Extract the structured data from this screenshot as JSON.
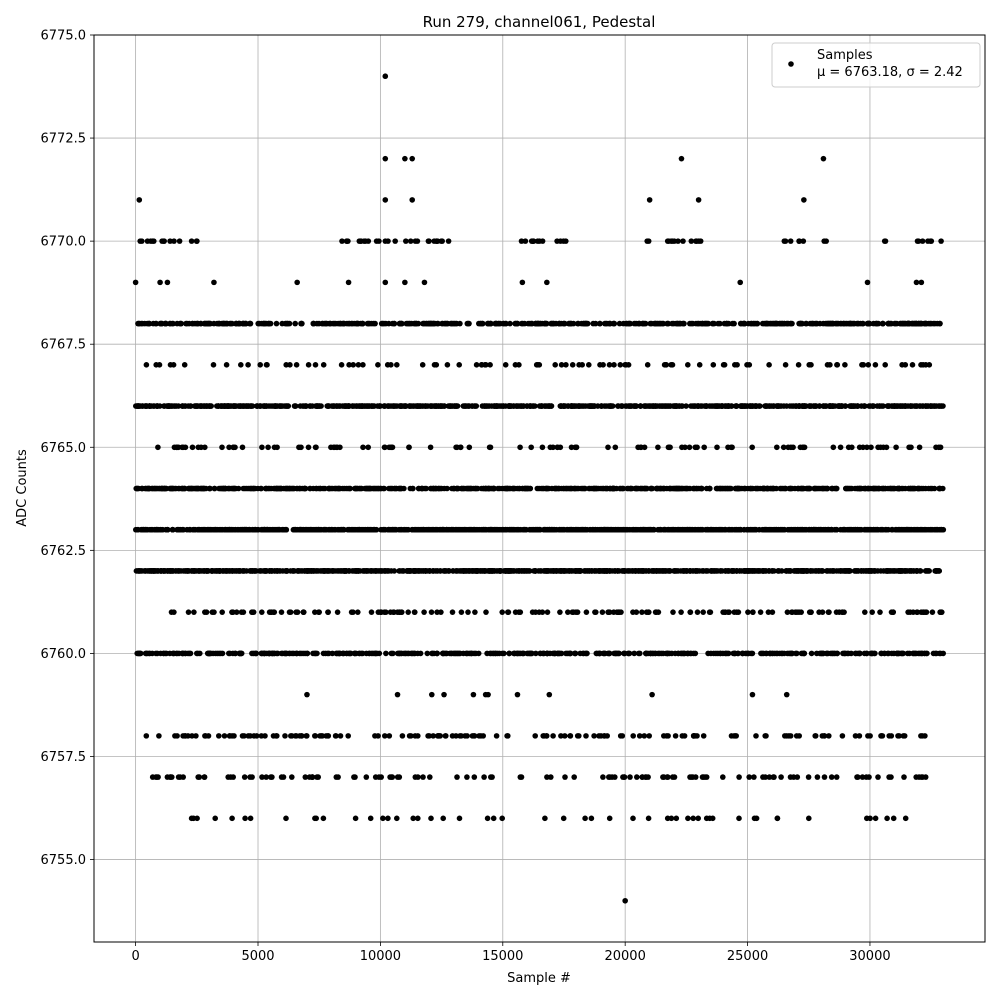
{
  "chart_data": {
    "type": "scatter",
    "title": "Run 279, channel061, Pedestal",
    "xlabel": "Sample #",
    "ylabel": "ADC Counts",
    "xlim": [
      -1700,
      34700
    ],
    "ylim": [
      6753.0,
      6775.0
    ],
    "xticks": [
      0,
      5000,
      10000,
      15000,
      20000,
      25000,
      30000
    ],
    "xtick_labels": [
      "0",
      "5000",
      "10000",
      "15000",
      "20000",
      "25000",
      "30000"
    ],
    "yticks": [
      6755.0,
      6757.5,
      6760.0,
      6762.5,
      6765.0,
      6767.5,
      6770.0,
      6772.5,
      6775.0
    ],
    "ytick_labels": [
      "6755.0",
      "6757.5",
      "6760.0",
      "6762.5",
      "6765.0",
      "6767.5",
      "6770.0",
      "6772.5",
      "6775.0"
    ],
    "grid": true,
    "legend": {
      "position": "top-right",
      "label": "Samples",
      "stats": "μ = 6763.18, σ = 2.42"
    },
    "marker_color": "#000000",
    "sample_range": [
      0,
      33000
    ],
    "series": [
      {
        "name": "Samples",
        "levels": [
          {
            "y": 6762,
            "x_ranges": [
              [
                0,
                33000
              ]
            ]
          },
          {
            "y": 6763,
            "x_ranges": [
              [
                0,
                33000
              ]
            ]
          },
          {
            "y": 6764,
            "x_ranges": [
              [
                0,
                33000
              ]
            ]
          },
          {
            "y": 6766,
            "x_ranges": [
              [
                0,
                33000
              ]
            ]
          },
          {
            "y": 6768,
            "x_ranges": [
              [
                0,
                33000
              ]
            ]
          },
          {
            "y": 6760,
            "x_ranges": [
              [
                0,
                33000
              ]
            ]
          },
          {
            "y": 6770,
            "x_ranges": [
              [
                0,
                1900
              ],
              [
                2200,
                2700
              ],
              [
                8300,
                12800
              ],
              [
                15500,
                17700
              ],
              [
                20800,
                23100
              ],
              [
                26500,
                27400
              ],
              [
                28000,
                28400
              ],
              [
                30400,
                30700
              ],
              [
                31800,
                33000
              ]
            ]
          },
          {
            "y": 6761,
            "x_ranges": [
              [
                1400,
                33000
              ]
            ]
          },
          {
            "y": 6765,
            "x_ranges": [
              [
                0,
                33000
              ]
            ]
          },
          {
            "y": 6767,
            "x_ranges": [
              [
                0,
                33000
              ]
            ]
          },
          {
            "y": 6758,
            "x_ranges": [
              [
                400,
                33000
              ]
            ]
          },
          {
            "y": 6757,
            "x_ranges": [
              [
                600,
                32400
              ]
            ]
          },
          {
            "y": 6756,
            "x_ranges": [
              [
                2200,
                32300
              ]
            ]
          }
        ],
        "isolated_points": [
          [
            150,
            6771
          ],
          [
            10200,
            6774
          ],
          [
            10200,
            6772
          ],
          [
            11000,
            6772
          ],
          [
            11300,
            6772
          ],
          [
            10200,
            6771
          ],
          [
            11300,
            6771
          ],
          [
            21000,
            6771
          ],
          [
            22300,
            6772
          ],
          [
            23000,
            6771
          ],
          [
            27300,
            6771
          ],
          [
            28100,
            6772
          ],
          [
            0,
            6769
          ],
          [
            1000,
            6769
          ],
          [
            1300,
            6769
          ],
          [
            3200,
            6769
          ],
          [
            6600,
            6769
          ],
          [
            8700,
            6769
          ],
          [
            10200,
            6769
          ],
          [
            11000,
            6769
          ],
          [
            11800,
            6769
          ],
          [
            15800,
            6769
          ],
          [
            16800,
            6769
          ],
          [
            24700,
            6769
          ],
          [
            29900,
            6769
          ],
          [
            31900,
            6769
          ],
          [
            32100,
            6769
          ],
          [
            7000,
            6759
          ],
          [
            10700,
            6759
          ],
          [
            12100,
            6759
          ],
          [
            12600,
            6759
          ],
          [
            13800,
            6759
          ],
          [
            14300,
            6759
          ],
          [
            14400,
            6759
          ],
          [
            15600,
            6759
          ],
          [
            16900,
            6759
          ],
          [
            21100,
            6759
          ],
          [
            25200,
            6759
          ],
          [
            26600,
            6759
          ],
          [
            20000,
            6754
          ]
        ]
      }
    ]
  }
}
